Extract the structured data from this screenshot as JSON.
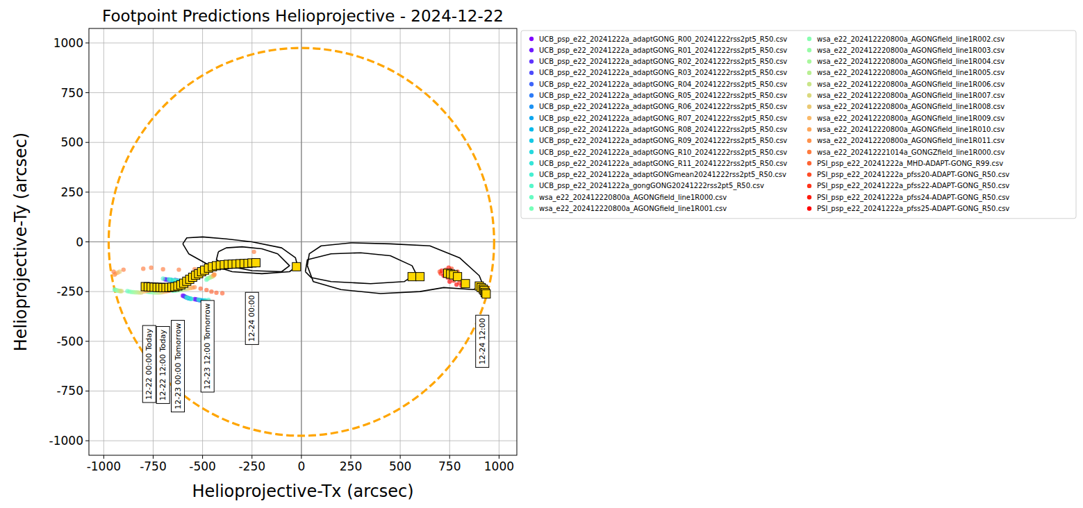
{
  "chart_data": {
    "type": "scatter",
    "title": "Footpoint Predictions Helioprojective - 2024-12-22",
    "x_label": "Helioprojective-Tx (arcsec)",
    "y_label": "Helioprojective-Ty (arcsec)",
    "xlim": [
      -1075,
      1090
    ],
    "ylim": [
      -1073,
      1073
    ],
    "xticks": [
      -1000,
      -750,
      -500,
      -250,
      0,
      250,
      500,
      750,
      1000
    ],
    "yticks": [
      -1000,
      -750,
      -500,
      -250,
      0,
      250,
      500,
      750,
      1000
    ],
    "grid": true,
    "legend": "outside upper right",
    "hlines": [
      0
    ],
    "vlines": [
      0
    ],
    "limb": {
      "radius": 975,
      "color": "#ffa500",
      "line_style": "dashed"
    },
    "contours": [
      {
        "color": "#000000",
        "x": [
          -600,
          -580,
          -500,
          -380,
          -250,
          -100,
          -30,
          -20,
          -60,
          -200,
          -350,
          -480,
          -570,
          -600
        ],
        "y": [
          -10,
          20,
          25,
          15,
          0,
          -30,
          -80,
          -120,
          -150,
          -160,
          -150,
          -110,
          -60,
          -10
        ]
      },
      {
        "color": "#000000",
        "x": [
          -420,
          -380,
          -300,
          -200,
          -120,
          -60,
          -100,
          -250,
          -380,
          -430,
          -420
        ],
        "y": [
          -50,
          -30,
          -25,
          -35,
          -60,
          -120,
          -150,
          -145,
          -120,
          -90,
          -50
        ]
      },
      {
        "color": "#000000",
        "x": [
          30,
          40,
          100,
          250,
          450,
          650,
          800,
          900,
          920,
          870,
          720,
          600,
          400,
          200,
          60,
          30
        ],
        "y": [
          -120,
          -60,
          -20,
          -5,
          -10,
          -20,
          -80,
          -170,
          -220,
          -240,
          -230,
          -250,
          -260,
          -240,
          -200,
          -120
        ]
      },
      {
        "color": "#000000",
        "x": [
          20,
          30,
          150,
          300,
          450,
          560,
          580,
          520,
          350,
          150,
          50,
          20
        ],
        "y": [
          -150,
          -90,
          -60,
          -55,
          -70,
          -120,
          -160,
          -200,
          -210,
          -200,
          -180,
          -150
        ]
      }
    ],
    "trajectory": {
      "color": "#ffd700",
      "marker": "square",
      "x": [
        -790,
        -775,
        -760,
        -745,
        -730,
        -715,
        -700,
        -685,
        -670,
        -655,
        -640,
        -625,
        -610,
        -595,
        -580,
        -565,
        -550,
        -535,
        -520,
        -505,
        -490,
        -470,
        -450,
        -430,
        -410,
        -390,
        -370,
        -350,
        -330,
        -310,
        -290,
        -270,
        -250,
        -230,
        -25,
        560,
        600,
        740,
        755,
        770,
        790,
        830,
        900,
        910,
        920,
        925,
        930,
        935
      ],
      "y": [
        -225,
        -226,
        -227,
        -228,
        -229,
        -229,
        -230,
        -230,
        -229,
        -228,
        -226,
        -222,
        -216,
        -208,
        -198,
        -188,
        -178,
        -168,
        -160,
        -150,
        -142,
        -132,
        -125,
        -120,
        -117,
        -115,
        -113,
        -112,
        -111,
        -110,
        -109,
        -108,
        -106,
        -105,
        -125,
        -175,
        -175,
        -158,
        -162,
        -166,
        -175,
        -210,
        -222,
        -230,
        -238,
        -245,
        -255,
        -262
      ]
    },
    "annotations": [
      {
        "text": "12-22 00:00 Today",
        "x": -770,
        "y": -615
      },
      {
        "text": "12-22 12:00 Today",
        "x": -700,
        "y": -620
      },
      {
        "text": "12-23 00:00 Tomorrow",
        "x": -625,
        "y": -625
      },
      {
        "text": "12-23 12:00 Tomorrow",
        "x": -475,
        "y": -525
      },
      {
        "text": "12-24 00:00",
        "x": -250,
        "y": -385
      },
      {
        "text": "12-24 12:00",
        "x": 915,
        "y": -500
      }
    ],
    "series": [
      {
        "name": "UCB_psp_e22_20241222a_adaptGONG_R00_20241222rss2pt5_R50.csv",
        "color": "#8000ff",
        "marker": "circle",
        "x": [
          -690,
          -640,
          -600,
          -540
        ],
        "values": [
          -188,
          -192,
          -270,
          -288
        ]
      },
      {
        "name": "UCB_psp_e22_20241222a_adaptGONG_R01_20241222rss2pt5_R50.csv",
        "color": "#6f1aff",
        "marker": "circle",
        "x": [
          -685,
          -636,
          -596,
          -535
        ],
        "values": [
          -189,
          -193,
          -272,
          -289
        ]
      },
      {
        "name": "UCB_psp_e22_20241222a_adaptGONG_R02_20241222rss2pt5_R50.csv",
        "color": "#5f33fe",
        "marker": "circle",
        "x": [
          -680,
          -632,
          -592,
          -530
        ],
        "values": [
          -190,
          -194,
          -274,
          -290
        ]
      },
      {
        "name": "UCB_psp_e22_20241222a_adaptGONG_R03_20241222rss2pt5_R50.csv",
        "color": "#4e4cfc",
        "marker": "circle",
        "x": [
          -675,
          -628,
          -588,
          -525
        ],
        "values": [
          -190,
          -195,
          -276,
          -291
        ]
      },
      {
        "name": "UCB_psp_e22_20241222a_adaptGONG_R04_20241222rss2pt5_R50.csv",
        "color": "#3e64fa",
        "marker": "circle",
        "x": [
          -670,
          -624,
          -584,
          -520
        ],
        "values": [
          -191,
          -196,
          -278,
          -292
        ]
      },
      {
        "name": "UCB_psp_e22_20241222a_adaptGONG_R05_20241222rss2pt5_R50.csv",
        "color": "#2d7bf7",
        "marker": "circle",
        "x": [
          -665,
          -620,
          -580,
          -515
        ],
        "values": [
          -192,
          -197,
          -280,
          -293
        ]
      },
      {
        "name": "UCB_psp_e22_20241222a_adaptGONG_R06_20241222rss2pt5_R50.csv",
        "color": "#1d92f3",
        "marker": "circle",
        "x": [
          -660,
          -616,
          -576,
          -510
        ],
        "values": [
          -192,
          -198,
          -282,
          -294
        ]
      },
      {
        "name": "UCB_psp_e22_20241222a_adaptGONG_R07_20241222rss2pt5_R50.csv",
        "color": "#0ca6ef",
        "marker": "circle",
        "x": [
          -655,
          -612,
          -572,
          -505
        ],
        "values": [
          -193,
          -199,
          -283,
          -294
        ]
      },
      {
        "name": "UCB_psp_e22_20241222a_adaptGONG_R08_20241222rss2pt5_R50.csv",
        "color": "#04b9ea",
        "marker": "circle",
        "x": [
          -650,
          -608,
          -568,
          -500
        ],
        "values": [
          -194,
          -200,
          -284,
          -295
        ]
      },
      {
        "name": "UCB_psp_e22_20241222a_adaptGONG_R09_20241222rss2pt5_R50.csv",
        "color": "#15c9e5",
        "marker": "circle",
        "x": [
          -645,
          -604,
          -564,
          -495
        ],
        "values": [
          -194,
          -201,
          -285,
          -295
        ]
      },
      {
        "name": "UCB_psp_e22_20241222a_adaptGONG_R10_20241222rss2pt5_R50.csv",
        "color": "#25d9de",
        "marker": "circle",
        "x": [
          -640,
          -600,
          -560,
          -490
        ],
        "values": [
          -195,
          -202,
          -286,
          -295
        ]
      },
      {
        "name": "UCB_psp_e22_20241222a_adaptGONG_R11_20241222rss2pt5_R50.csv",
        "color": "#35e5d8",
        "marker": "circle",
        "x": [
          -635,
          -596,
          -556,
          -485
        ],
        "values": [
          -196,
          -203,
          -287,
          -294
        ]
      },
      {
        "name": "UCB_psp_e22_20241222a_adaptGONGmean20241222rss2pt5_R50.csv",
        "color": "#46efd1",
        "marker": "circle",
        "x": [
          -660,
          -620,
          -580,
          -520,
          -470
        ],
        "values": [
          -190,
          -195,
          -280,
          -290,
          -292
        ]
      },
      {
        "name": "UCB_psp_e22_20241222a_gongGONG20241222rss2pt5_R50.csv",
        "color": "#56f7ca",
        "marker": "circle",
        "x": [
          -700,
          -670,
          -640,
          -600
        ],
        "values": [
          -185,
          -188,
          -192,
          -196
        ]
      },
      {
        "name": "wsa_e22_202412220800a_AGONGfield_line1R000.csv",
        "color": "#67fcc2",
        "marker": "circle",
        "x": [
          -945,
          -880,
          -780,
          -650,
          -480
        ],
        "values": [
          -240,
          -248,
          -250,
          -246,
          -190
        ]
      },
      {
        "name": "wsa_e22_202412220800a_AGONGfield_line1R001.csv",
        "color": "#77ffb9",
        "marker": "circle",
        "x": [
          -940,
          -870,
          -770,
          -640,
          -475
        ],
        "values": [
          -242,
          -250,
          -252,
          -245,
          -185
        ]
      },
      {
        "name": "wsa_e22_202412220800a_AGONGfield_line1R002.csv",
        "color": "#88ffb0",
        "marker": "circle",
        "x": [
          -935,
          -860,
          -760,
          -630,
          -470
        ],
        "values": [
          -244,
          -252,
          -253,
          -244,
          -182
        ]
      },
      {
        "name": "wsa_e22_202412220800a_AGONGfield_line1R003.csv",
        "color": "#98fca6",
        "marker": "circle",
        "x": [
          -930,
          -850,
          -750,
          -620,
          -465
        ],
        "values": [
          -245,
          -253,
          -254,
          -243,
          -180
        ]
      },
      {
        "name": "wsa_e22_202412220800a_AGONGfield_line1R004.csv",
        "color": "#a9f79d",
        "marker": "circle",
        "x": [
          -925,
          -840,
          -740,
          -610,
          -460
        ],
        "values": [
          -246,
          -254,
          -255,
          -242,
          -178
        ]
      },
      {
        "name": "wsa_e22_202412220800a_AGONGfield_line1R005.csv",
        "color": "#b9ef93",
        "marker": "circle",
        "x": [
          -920,
          -830,
          -730,
          -600,
          -455
        ],
        "values": [
          -247,
          -254,
          -255,
          -240,
          -176
        ]
      },
      {
        "name": "wsa_e22_202412220800a_AGONGfield_line1R006.csv",
        "color": "#c9e588",
        "marker": "circle",
        "x": [
          -915,
          -820,
          -720,
          -590,
          -450
        ],
        "values": [
          -248,
          -255,
          -255,
          -238,
          -174
        ]
      },
      {
        "name": "wsa_e22_202412220800a_AGONGfield_line1R007.csv",
        "color": "#dad97d",
        "marker": "circle",
        "x": [
          -910,
          -810,
          -710,
          -580,
          -448
        ],
        "values": [
          -248,
          -255,
          -254,
          -236,
          -172
        ]
      },
      {
        "name": "wsa_e22_202412220800a_AGONGfield_line1R008.csv",
        "color": "#eac972",
        "marker": "circle",
        "x": [
          -920,
          -800,
          -700,
          -570,
          -446
        ],
        "values": [
          -150,
          -250,
          -252,
          -234,
          -170
        ]
      },
      {
        "name": "wsa_e22_202412220800a_AGONGfield_line1R009.csv",
        "color": "#fbb967",
        "marker": "circle",
        "x": [
          -930,
          -790,
          -690,
          -560,
          -444
        ],
        "values": [
          -155,
          -248,
          -250,
          -232,
          -168
        ]
      },
      {
        "name": "wsa_e22_202412220800a_AGONGfield_line1R010.csv",
        "color": "#ffa659",
        "marker": "circle",
        "x": [
          -940,
          -780,
          -680,
          -550,
          -442
        ],
        "values": [
          -160,
          -246,
          -248,
          -230,
          -166
        ]
      },
      {
        "name": "wsa_e22_202412220800a_AGONGfield_line1R011.csv",
        "color": "#ff924c",
        "marker": "circle",
        "x": [
          -945,
          -770,
          -670,
          -540,
          -440
        ],
        "values": [
          -165,
          -244,
          -246,
          -228,
          -164
        ]
      },
      {
        "name": "wsa_e22_202412221014a_GONGZfield_line1R000.csv",
        "color": "#ff7c3f",
        "marker": "circle",
        "x": [
          -950,
          -900,
          -800,
          -760,
          -700,
          -620,
          -540,
          -490,
          -240
        ],
        "values": [
          -150,
          -140,
          -135,
          -130,
          -138,
          -140,
          -138,
          -140,
          -50
        ]
      },
      {
        "name": "PSI_psp_e22_20241222a_MHD-ADAPT-GONG_R99.csv",
        "color": "#ff6433",
        "marker": "circle",
        "x": [
          -510,
          -480,
          -455,
          -430,
          -400
        ],
        "values": [
          -235,
          -242,
          -250,
          -256,
          -258
        ]
      },
      {
        "name": "PSI_psp_e22_20241222a_pfss20-ADAPT-GONG_R50.csv",
        "color": "#ff4c26",
        "marker": "circle",
        "x": [
          700,
          730,
          760,
          790
        ],
        "values": [
          -150,
          -140,
          -135,
          -150
        ]
      },
      {
        "name": "PSI_psp_e22_20241222a_pfss22-ADAPT-GONG_R50.csv",
        "color": "#ff331a",
        "marker": "circle",
        "x": [
          705,
          740,
          770,
          800
        ],
        "values": [
          -160,
          -180,
          -195,
          -205
        ]
      },
      {
        "name": "PSI_psp_e22_20241222a_pfss24-ADAPT-GONG_R50.csv",
        "color": "#ff1a0d",
        "marker": "circle",
        "x": [
          710,
          745,
          780,
          815
        ],
        "values": [
          -145,
          -130,
          -160,
          -210
        ]
      },
      {
        "name": "PSI_psp_e22_20241222a_pfss25-ADAPT-GONG_R50.csv",
        "color": "#ff0000",
        "marker": "circle",
        "x": [
          720,
          750,
          785,
          810
        ],
        "values": [
          -170,
          -200,
          -215,
          -220
        ]
      }
    ]
  }
}
